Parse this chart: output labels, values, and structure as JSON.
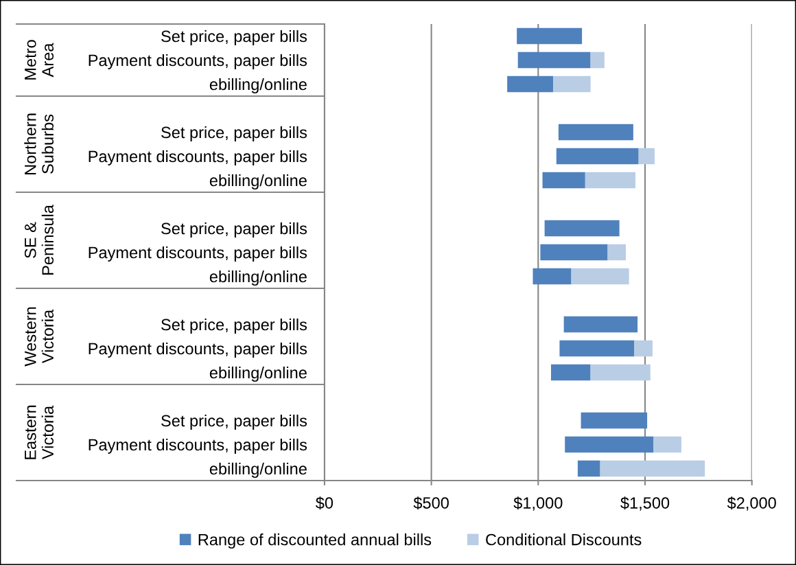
{
  "chart_data": {
    "type": "bar",
    "orientation": "horizontal",
    "categories": [
      "Set price, paper bills",
      "Payment discounts, paper bills",
      "ebilling/online",
      null,
      "Set price, paper bills",
      "Payment discounts, paper bills",
      "ebilling/online",
      null,
      "Set price, paper bills",
      "Payment discounts, paper bills",
      "ebilling/online",
      null,
      "Set price, paper bills",
      "Payment discounts, paper bills",
      "ebilling/online",
      null,
      "Set price, paper bills",
      "Payment discounts, paper bills",
      "ebilling/online"
    ],
    "series": [
      {
        "name": "Range of discounted annual bills",
        "color": "#4f81bd",
        "base": [
          900,
          905,
          855,
          null,
          1095,
          1085,
          1020,
          null,
          1030,
          1010,
          975,
          null,
          1120,
          1100,
          1060,
          null,
          1200,
          1125,
          1185
        ],
        "values": [
          305,
          340,
          215,
          null,
          350,
          385,
          200,
          null,
          350,
          315,
          180,
          null,
          345,
          350,
          185,
          null,
          310,
          415,
          105
        ]
      },
      {
        "name": "Conditional Discounts",
        "color": "#b9cde5",
        "base": [
          null,
          1245,
          1070,
          null,
          null,
          1470,
          1220,
          null,
          null,
          1325,
          1155,
          null,
          null,
          1450,
          1245,
          null,
          null,
          1540,
          1290
        ],
        "values": [
          null,
          65,
          175,
          null,
          null,
          75,
          235,
          null,
          null,
          85,
          270,
          null,
          null,
          85,
          280,
          null,
          null,
          130,
          490
        ]
      }
    ],
    "xlim": [
      0,
      2000
    ],
    "xticks": [
      {
        "value": 0,
        "label": "$0"
      },
      {
        "value": 500,
        "label": "$500"
      },
      {
        "value": 1000,
        "label": "$1,000"
      },
      {
        "value": 1500,
        "label": "$1,500"
      },
      {
        "value": 2000,
        "label": "$2,000"
      }
    ],
    "grid": "x",
    "legend": "bottom",
    "annotations": [
      "Metro Area",
      "Northern Suburbs",
      "SE & Peninsula",
      "Western Victoria",
      "Eastern Victoria"
    ]
  }
}
